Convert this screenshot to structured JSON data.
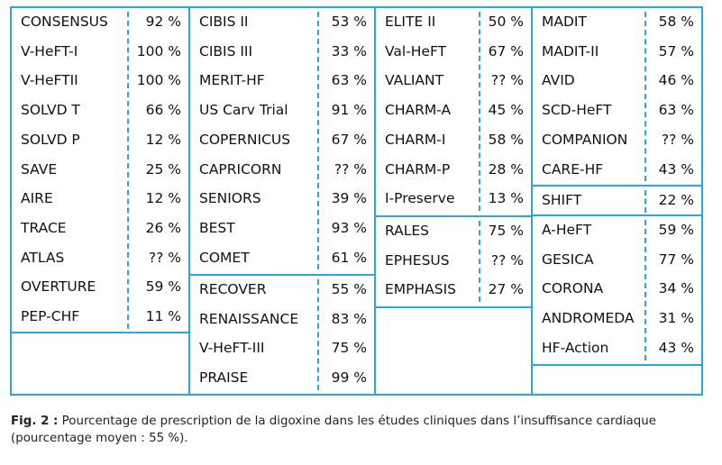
{
  "accent_color": "#2aa7e0",
  "columns": [
    {
      "blocks": [
        {
          "rows": [
            {
              "name": "CONSENSUS",
              "pct": "92 %"
            },
            {
              "name": "V-HeFT-I",
              "pct": "100 %"
            },
            {
              "name": "V-HeFTII",
              "pct": "100 %"
            },
            {
              "name": "SOLVD T",
              "pct": "66 %"
            },
            {
              "name": "SOLVD P",
              "pct": "12 %"
            },
            {
              "name": "SAVE",
              "pct": "25 %"
            },
            {
              "name": "AIRE",
              "pct": "12 %"
            },
            {
              "name": "TRACE",
              "pct": "26 %"
            },
            {
              "name": "ATLAS",
              "pct": "?? %"
            },
            {
              "name": "OVERTURE",
              "pct": "59 %"
            },
            {
              "name": "PEP-CHF",
              "pct": "11 %"
            }
          ]
        },
        {
          "rows": []
        }
      ]
    },
    {
      "blocks": [
        {
          "rows": [
            {
              "name": "CIBIS II",
              "pct": "53 %"
            },
            {
              "name": "CIBIS III",
              "pct": "33 %"
            },
            {
              "name": "MERIT-HF",
              "pct": "63 %"
            },
            {
              "name": "US Carv Trial",
              "pct": "91 %"
            },
            {
              "name": "COPERNICUS",
              "pct": "67 %"
            },
            {
              "name": "CAPRICORN",
              "pct": "?? %"
            },
            {
              "name": "SENIORS",
              "pct": "39 %"
            },
            {
              "name": "BEST",
              "pct": "93 %"
            },
            {
              "name": "COMET",
              "pct": "61 %"
            }
          ]
        },
        {
          "rows": [
            {
              "name": "RECOVER",
              "pct": "55 %"
            },
            {
              "name": "RENAISSANCE",
              "pct": "83 %"
            },
            {
              "name": "V-HeFT-III",
              "pct": "75 %"
            },
            {
              "name": "PRAISE",
              "pct": "99 %"
            }
          ]
        }
      ]
    },
    {
      "blocks": [
        {
          "rows": [
            {
              "name": "ELITE II",
              "pct": "50 %"
            },
            {
              "name": "Val-HeFT",
              "pct": "67 %"
            },
            {
              "name": "VALIANT",
              "pct": "?? %"
            },
            {
              "name": "CHARM-A",
              "pct": "45 %"
            },
            {
              "name": "CHARM-I",
              "pct": "58 %"
            },
            {
              "name": "CHARM-P",
              "pct": "28 %"
            },
            {
              "name": "I-Preserve",
              "pct": "13 %"
            }
          ]
        },
        {
          "rows": [
            {
              "name": "RALES",
              "pct": "75 %"
            },
            {
              "name": "EPHESUS",
              "pct": "?? %"
            },
            {
              "name": "EMPHASIS",
              "pct": "27 %"
            }
          ]
        },
        {
          "rows": []
        }
      ]
    },
    {
      "blocks": [
        {
          "rows": [
            {
              "name": "MADIT",
              "pct": "58 %"
            },
            {
              "name": "MADIT-II",
              "pct": "57 %"
            },
            {
              "name": "AVID",
              "pct": "46 %"
            },
            {
              "name": "SCD-HeFT",
              "pct": "63 %"
            },
            {
              "name": "COMPANION",
              "pct": "?? %"
            },
            {
              "name": "CARE-HF",
              "pct": "43 %"
            }
          ]
        },
        {
          "rows": [
            {
              "name": "SHIFT",
              "pct": "22 %"
            }
          ]
        },
        {
          "rows": [
            {
              "name": "A-HeFT",
              "pct": "59 %"
            },
            {
              "name": "GESICA",
              "pct": "77 %"
            },
            {
              "name": "CORONA",
              "pct": "34 %"
            },
            {
              "name": "ANDROMEDA",
              "pct": "31 %"
            },
            {
              "name": "HF-Action",
              "pct": "43 %"
            }
          ]
        },
        {
          "rows": []
        }
      ]
    }
  ],
  "caption": {
    "label": "Fig. 2 :",
    "text": " Pourcentage de prescription de la digoxine dans les études cliniques dans l’insuffisance cardiaque (pourcentage moyen : 55 %)."
  }
}
